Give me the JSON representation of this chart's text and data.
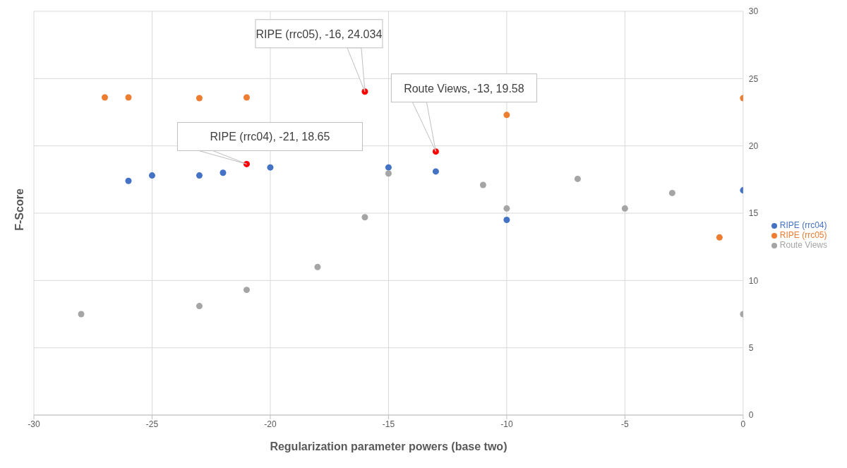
{
  "chart_data": {
    "type": "scatter",
    "xlabel": "Regularization parameter powers (base two)",
    "ylabel": "F-Score",
    "xlim": [
      -30,
      0
    ],
    "xticks": [
      -30,
      -25,
      -20,
      -15,
      -10,
      -5,
      0
    ],
    "ylim": [
      0,
      30
    ],
    "yticks": [
      0,
      5,
      10,
      15,
      20,
      25,
      30
    ],
    "grid": true,
    "legend": "right",
    "marker": "circle",
    "series": [
      {
        "name": "RIPE (rrc04)",
        "color": "#4472c4",
        "x": [
          -26,
          -25,
          -23,
          -22,
          -21,
          -20,
          -15,
          -13,
          -10,
          0
        ],
        "values": [
          17.4,
          17.8,
          17.8,
          18.0,
          18.65,
          18.4,
          18.4,
          18.1,
          14.5,
          16.7
        ],
        "colors": [
          "#4472c4",
          "#4472c4",
          "#4472c4",
          "#4472c4",
          "#ff0000",
          "#4472c4",
          "#4472c4",
          "#4472c4",
          "#4472c4",
          "#4472c4"
        ]
      },
      {
        "name": "RIPE (rrc05)",
        "color": "#ed7d31",
        "x": [
          -27,
          -26,
          -23,
          -21,
          -16,
          -10,
          -1,
          0
        ],
        "values": [
          23.6,
          23.6,
          23.55,
          23.6,
          24.034,
          22.3,
          13.2,
          23.55
        ],
        "colors": [
          "#ed7d31",
          "#ed7d31",
          "#ed7d31",
          "#ed7d31",
          "#ff0000",
          "#ed7d31",
          "#ed7d31",
          "#ed7d31"
        ]
      },
      {
        "name": "Route Views",
        "color": "#a5a5a5",
        "x": [
          -28,
          -23,
          -21,
          -18,
          -16,
          -15,
          -13,
          -11,
          -10,
          -7,
          -5,
          -3,
          0
        ],
        "values": [
          7.5,
          8.1,
          9.3,
          11.0,
          14.7,
          17.95,
          19.58,
          17.1,
          15.35,
          17.55,
          15.35,
          16.5,
          7.5
        ],
        "colors": [
          "#a5a5a5",
          "#a5a5a5",
          "#a5a5a5",
          "#a5a5a5",
          "#a5a5a5",
          "#a5a5a5",
          "#ff0000",
          "#a5a5a5",
          "#a5a5a5",
          "#a5a5a5",
          "#a5a5a5",
          "#a5a5a5",
          "#a5a5a5"
        ]
      }
    ],
    "annotations": [
      {
        "text": "RIPE (rrc05), -16, 24.034",
        "x": -16,
        "y": 24.034
      },
      {
        "text": "Route Views, -13, 19.58",
        "x": -13,
        "y": 19.58
      },
      {
        "text": "RIPE (rrc04), -21, 18.65",
        "x": -21,
        "y": 18.65
      }
    ]
  }
}
